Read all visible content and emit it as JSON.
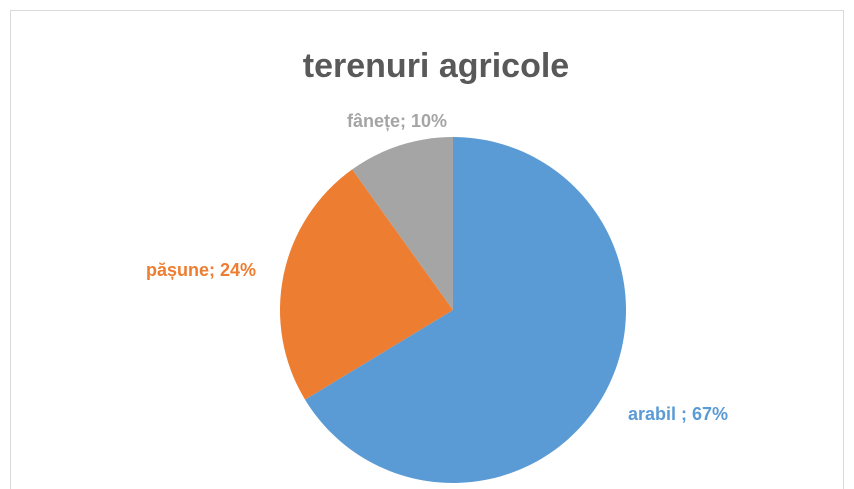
{
  "chart_data": {
    "type": "pie",
    "title": "terenuri agricole",
    "values": [
      67,
      24,
      10
    ],
    "value_labels": [
      "arabil ; 67%",
      "pășune; 24%",
      "fânețe; 10%"
    ],
    "colors": [
      "#5b9bd5",
      "#ed7d31",
      "#a5a5a5"
    ]
  }
}
